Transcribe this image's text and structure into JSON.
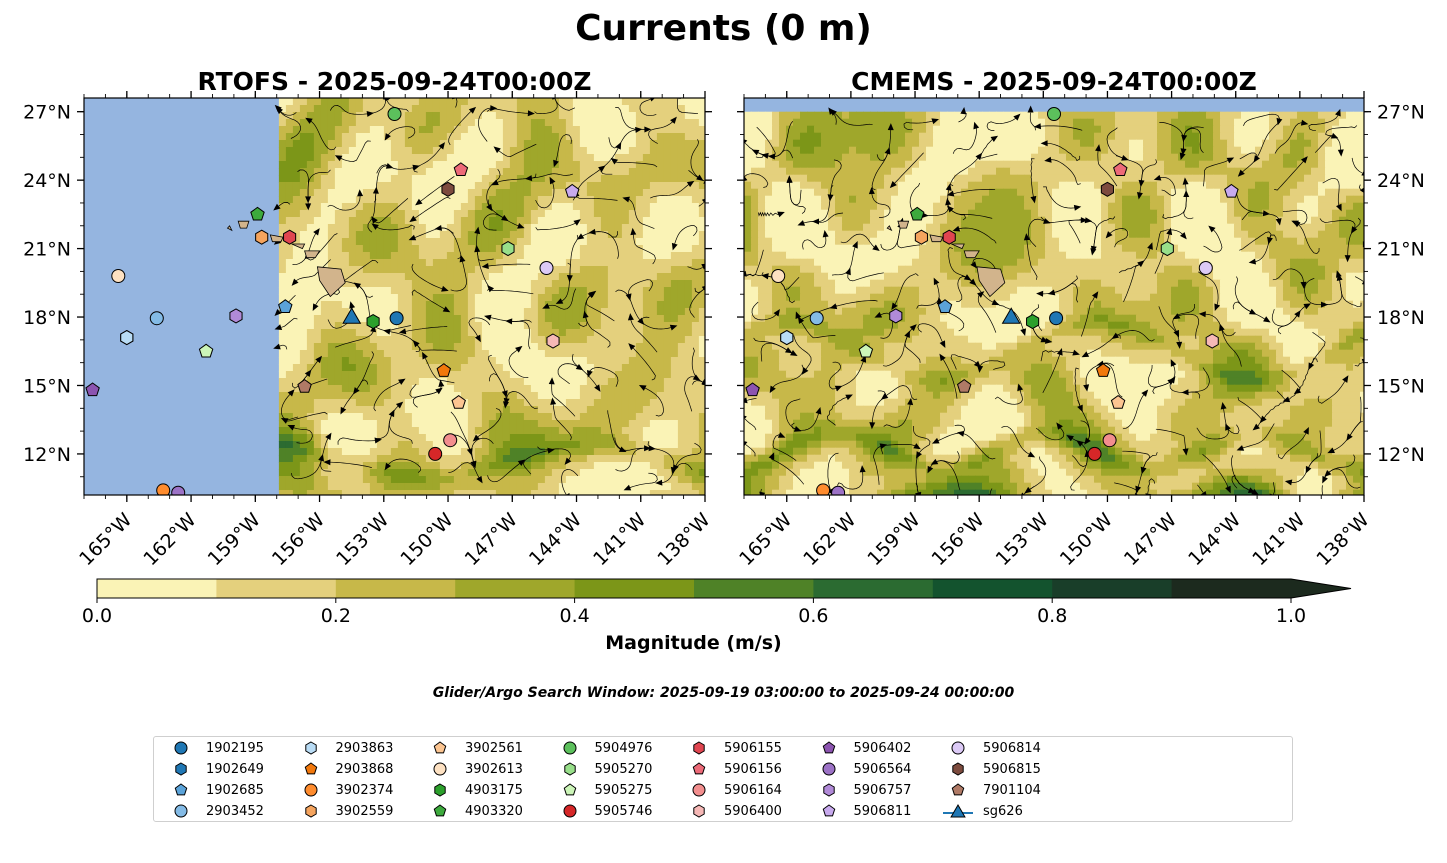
{
  "figure": {
    "suptitle": "Currents (0 m)",
    "search_window": "Glider/Argo Search Window: 2025-09-19 03:00:00 to 2025-09-24 00:00:00"
  },
  "colors": {
    "land": "#d2b48c",
    "nodata": "#95b5e0",
    "colormap": [
      "#faf3b6",
      "#e4d07d",
      "#c7b849",
      "#9fa72b",
      "#7c9618",
      "#4f8227",
      "#2b6b31",
      "#13532e",
      "#193e29",
      "#1c2a1e"
    ]
  },
  "colorbar": {
    "label": "Magnitude (m/s)",
    "ticks": [
      "0.0",
      "0.2",
      "0.4",
      "0.6",
      "0.8",
      "1.0"
    ],
    "tick_values": [
      0,
      0.2,
      0.4,
      0.6,
      0.8,
      1.0
    ],
    "range": [
      0,
      1.0
    ],
    "levels": [
      0,
      0.1,
      0.2,
      0.3,
      0.4,
      0.5,
      0.6,
      0.7,
      0.8,
      0.9,
      1.0
    ],
    "extend": "max"
  },
  "chart_data": [
    {
      "type": "map",
      "title": "RTOFS - 2025-09-24T00:00Z",
      "model": "RTOFS",
      "xlim": [
        -167,
        -138
      ],
      "ylim": [
        10.2,
        27.6
      ],
      "data_lon_min": -157.9,
      "ylabel_side": "left",
      "xticks": [
        -165,
        -162,
        -159,
        -156,
        -153,
        -150,
        -147,
        -144,
        -141,
        -138
      ],
      "xtick_labels": [
        "165°W",
        "162°W",
        "159°W",
        "156°W",
        "153°W",
        "150°W",
        "147°W",
        "144°W",
        "141°W",
        "138°W"
      ],
      "yticks": [
        12,
        15,
        18,
        21,
        24,
        27
      ],
      "ytick_labels": [
        "12°N",
        "15°N",
        "18°N",
        "21°N",
        "24°N",
        "27°N"
      ]
    },
    {
      "type": "map",
      "title": "CMEMS - 2025-09-24T00:00Z",
      "model": "CMEMS",
      "xlim": [
        -167,
        -138
      ],
      "ylim": [
        10.2,
        27.6
      ],
      "data_lat_max": 27.0,
      "ylabel_side": "right",
      "xticks": [
        -165,
        -162,
        -159,
        -156,
        -153,
        -150,
        -147,
        -144,
        -141,
        -138
      ],
      "xtick_labels": [
        "165°W",
        "162°W",
        "159°W",
        "156°W",
        "153°W",
        "150°W",
        "147°W",
        "144°W",
        "141°W",
        "138°W"
      ],
      "yticks": [
        12,
        15,
        18,
        21,
        24,
        27
      ],
      "ytick_labels": [
        "12°N",
        "15°N",
        "18°N",
        "21°N",
        "24°N",
        "27°N"
      ]
    }
  ],
  "floats": [
    {
      "id": "1902195",
      "marker": "circle",
      "color": "#1f77b4",
      "lon": -152.4,
      "lat": 17.95
    },
    {
      "id": "1902649",
      "marker": "hexagon",
      "color": "#1f77b4",
      "lon": -165.0,
      "lat": 17.1
    },
    {
      "id": "1902685",
      "marker": "pentagon",
      "color": "#5ba3d9",
      "lon": -157.6,
      "lat": 18.45
    },
    {
      "id": "2903452",
      "marker": "circle",
      "color": "#84bbe6",
      "lon": -163.6,
      "lat": 17.95
    },
    {
      "id": "2903863",
      "marker": "hexagon",
      "color": "#b9dcf5",
      "lon": -165.0,
      "lat": 17.1
    },
    {
      "id": "2903868",
      "marker": "pentagon",
      "color": "#f2780c",
      "lon": -150.2,
      "lat": 15.65
    },
    {
      "id": "3902374",
      "marker": "circle",
      "color": "#ff8c2e",
      "lon": -163.3,
      "lat": 10.4
    },
    {
      "id": "3902559",
      "marker": "hexagon",
      "color": "#f5a45e",
      "lon": -158.7,
      "lat": 21.5
    },
    {
      "id": "3902561",
      "marker": "pentagon",
      "color": "#fcc591",
      "lon": -149.5,
      "lat": 14.25
    },
    {
      "id": "3902613",
      "marker": "circle",
      "color": "#fde1c2",
      "lon": -165.4,
      "lat": 19.8
    },
    {
      "id": "4903175",
      "marker": "hexagon",
      "color": "#2ca02c",
      "lon": -153.5,
      "lat": 17.8
    },
    {
      "id": "4903320",
      "marker": "pentagon",
      "color": "#3daa3d",
      "lon": -158.9,
      "lat": 22.5
    },
    {
      "id": "5904976",
      "marker": "circle",
      "color": "#5cc05c",
      "lon": -152.5,
      "lat": 26.9
    },
    {
      "id": "5905270",
      "marker": "hexagon",
      "color": "#98df8a",
      "lon": -147.2,
      "lat": 21.0
    },
    {
      "id": "5905275",
      "marker": "pentagon",
      "color": "#ccf5b8",
      "lon": -161.3,
      "lat": 16.5
    },
    {
      "id": "5905746",
      "marker": "circle",
      "color": "#d62728",
      "lon": -150.6,
      "lat": 12.0
    },
    {
      "id": "5906155",
      "marker": "hexagon",
      "color": "#e04550",
      "lon": -157.4,
      "lat": 21.5
    },
    {
      "id": "5906156",
      "marker": "pentagon",
      "color": "#ed6a78",
      "lon": -149.4,
      "lat": 24.45
    },
    {
      "id": "5906164",
      "marker": "circle",
      "color": "#f28e8e",
      "lon": -149.9,
      "lat": 12.6
    },
    {
      "id": "5906400",
      "marker": "hexagon",
      "color": "#f6b8b6",
      "lon": -145.1,
      "lat": 16.95
    },
    {
      "id": "5906402",
      "marker": "pentagon",
      "color": "#8c54b0",
      "lon": -166.6,
      "lat": 14.8
    },
    {
      "id": "5906564",
      "marker": "circle",
      "color": "#9c72c6",
      "lon": -162.6,
      "lat": 10.3
    },
    {
      "id": "5906757",
      "marker": "hexagon",
      "color": "#b18ad8",
      "lon": -159.9,
      "lat": 18.05
    },
    {
      "id": "5906811",
      "marker": "pentagon",
      "color": "#c8aaee",
      "lon": -144.2,
      "lat": 23.5
    },
    {
      "id": "5906814",
      "marker": "circle",
      "color": "#dccaf6",
      "lon": -145.4,
      "lat": 20.15
    },
    {
      "id": "5906815",
      "marker": "hexagon",
      "color": "#7d4b3e",
      "lon": -150.0,
      "lat": 23.6
    },
    {
      "id": "7901104",
      "marker": "pentagon",
      "color": "#b07a66",
      "lon": -156.7,
      "lat": 14.95
    }
  ],
  "gliders": [
    {
      "id": "sg626",
      "marker": "triangle",
      "color": "#1f77b4",
      "lon": -154.5,
      "lat": 17.95
    }
  ],
  "legend": {
    "items": [
      {
        "label": "1902195",
        "marker": "circle",
        "color": "#1f77b4"
      },
      {
        "label": "1902649",
        "marker": "hexagon",
        "color": "#1f77b4"
      },
      {
        "label": "1902685",
        "marker": "pentagon",
        "color": "#5ba3d9"
      },
      {
        "label": "2903452",
        "marker": "circle",
        "color": "#84bbe6"
      },
      {
        "label": "2903863",
        "marker": "hexagon",
        "color": "#b9dcf5"
      },
      {
        "label": "2903868",
        "marker": "pentagon",
        "color": "#f2780c"
      },
      {
        "label": "3902374",
        "marker": "circle",
        "color": "#ff8c2e"
      },
      {
        "label": "3902559",
        "marker": "hexagon",
        "color": "#f5a45e"
      },
      {
        "label": "3902561",
        "marker": "pentagon",
        "color": "#fcc591"
      },
      {
        "label": "3902613",
        "marker": "circle",
        "color": "#fde1c2"
      },
      {
        "label": "4903175",
        "marker": "hexagon",
        "color": "#2ca02c"
      },
      {
        "label": "4903320",
        "marker": "pentagon",
        "color": "#3daa3d"
      },
      {
        "label": "5904976",
        "marker": "circle",
        "color": "#5cc05c"
      },
      {
        "label": "5905270",
        "marker": "hexagon",
        "color": "#98df8a"
      },
      {
        "label": "5905275",
        "marker": "pentagon",
        "color": "#ccf5b8"
      },
      {
        "label": "5905746",
        "marker": "circle",
        "color": "#d62728"
      },
      {
        "label": "5906155",
        "marker": "hexagon",
        "color": "#e04550"
      },
      {
        "label": "5906156",
        "marker": "pentagon",
        "color": "#ed6a78"
      },
      {
        "label": "5906164",
        "marker": "circle",
        "color": "#f28e8e"
      },
      {
        "label": "5906400",
        "marker": "hexagon",
        "color": "#f6b8b6"
      },
      {
        "label": "5906402",
        "marker": "pentagon",
        "color": "#8c54b0"
      },
      {
        "label": "5906564",
        "marker": "circle",
        "color": "#9c72c6"
      },
      {
        "label": "5906757",
        "marker": "hexagon",
        "color": "#b18ad8"
      },
      {
        "label": "5906811",
        "marker": "pentagon",
        "color": "#c8aaee"
      },
      {
        "label": "5906814",
        "marker": "circle",
        "color": "#dccaf6"
      },
      {
        "label": "5906815",
        "marker": "hexagon",
        "color": "#7d4b3e"
      },
      {
        "label": "7901104",
        "marker": "pentagon",
        "color": "#b07a66"
      },
      {
        "label": "sg626",
        "marker": "triangle",
        "color": "#1f77b4"
      }
    ]
  }
}
